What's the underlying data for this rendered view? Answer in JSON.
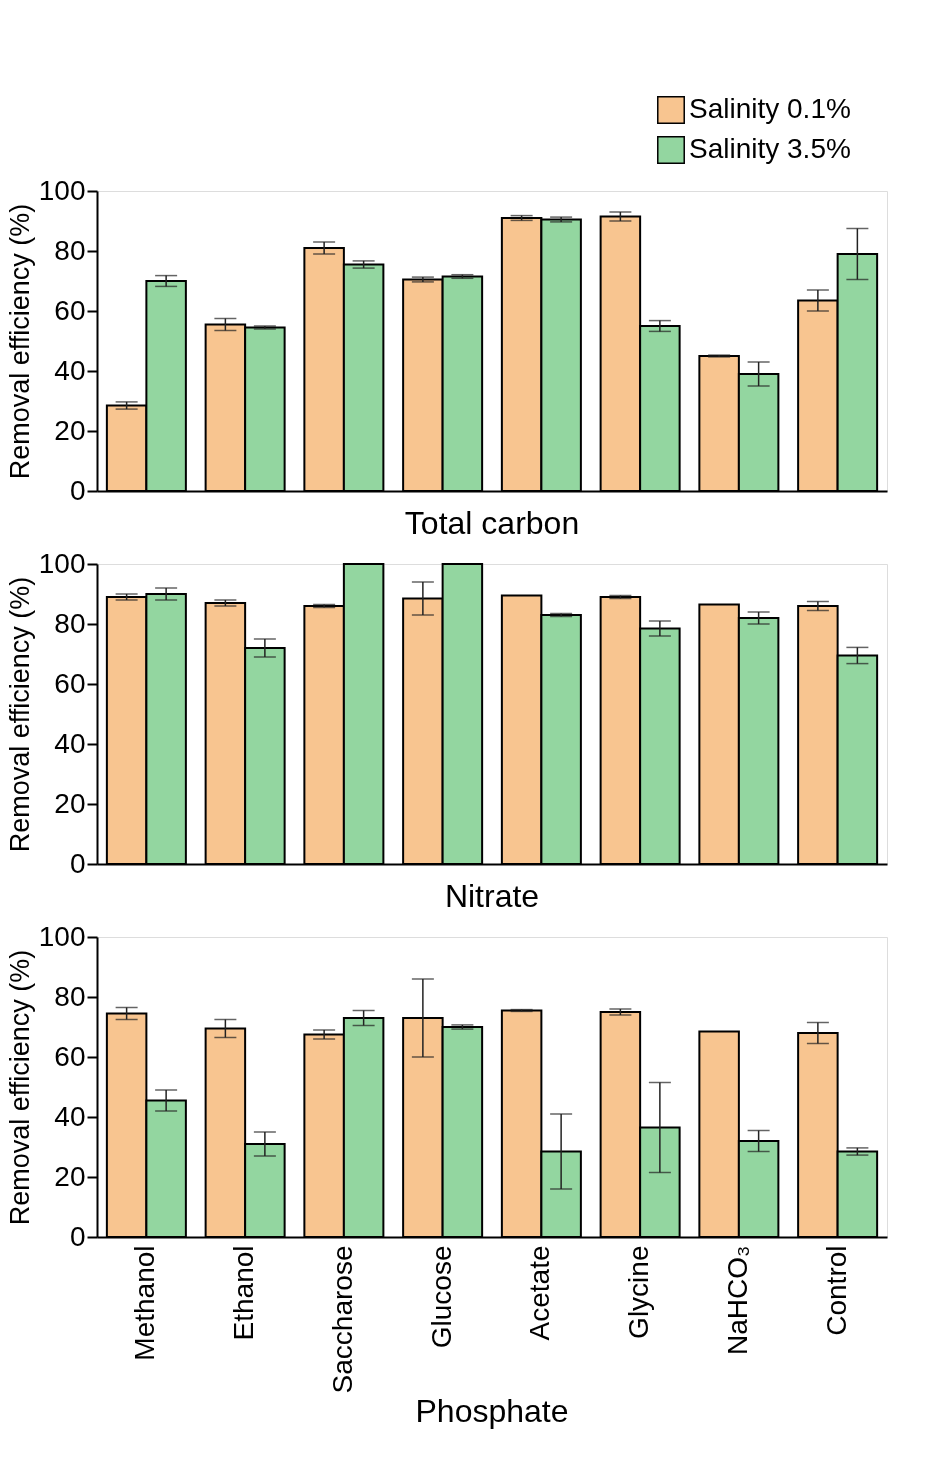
{
  "chart_data": [
    {
      "type": "bar",
      "title": "Total carbon",
      "ylabel": "Removal efficiency (%)",
      "categories": [
        null,
        null,
        null,
        null,
        null,
        null,
        null,
        null
      ],
      "ylim": [
        0,
        100
      ],
      "yticks": [
        0,
        20,
        40,
        60,
        80,
        100
      ],
      "grid": false,
      "legend": "top right",
      "tick_labels": "y",
      "series": [
        {
          "name": "Salinity 0.1%",
          "color": "#f8c590",
          "values": [
            28.5,
            55.5,
            81,
            70.5,
            91,
            91.5,
            45,
            63.5
          ],
          "errors": [
            1.2,
            2,
            2,
            0.8,
            0.8,
            1.5,
            0.3,
            3.5
          ]
        },
        {
          "name": "Salinity 3.5%",
          "color": "#93d6a0",
          "values": [
            70,
            54.5,
            75.5,
            71.5,
            90.5,
            55,
            39,
            79
          ],
          "errors": [
            1.8,
            0.5,
            1.2,
            0.6,
            0.8,
            1.8,
            4,
            8.5
          ]
        }
      ]
    },
    {
      "type": "bar",
      "title": "Nitrate",
      "ylabel": "Removal efficiency (%)",
      "categories": [
        null,
        null,
        null,
        null,
        null,
        null,
        null,
        null
      ],
      "ylim": [
        0,
        100
      ],
      "yticks": [
        0,
        20,
        40,
        60,
        80,
        100
      ],
      "grid": false,
      "tick_labels": "y",
      "series": [
        {
          "name": "Salinity 0.1%",
          "color": "#f8c590",
          "values": [
            89,
            87,
            86,
            88.5,
            89.5,
            89,
            86.5,
            86
          ],
          "errors": [
            1,
            1,
            0.5,
            5.5,
            null,
            0.5,
            null,
            1.5
          ]
        },
        {
          "name": "Salinity 3.5%",
          "color": "#93d6a0",
          "values": [
            90,
            72,
            100,
            100,
            83,
            78.5,
            82,
            69.5
          ],
          "errors": [
            2,
            3,
            null,
            null,
            0.5,
            2.5,
            2,
            2.7
          ]
        }
      ]
    },
    {
      "type": "bar",
      "title": "Phosphate",
      "ylabel": "Removal efficiency (%)",
      "categories": [
        "Methanol",
        "Ethanol",
        "Saccharose",
        "Glucose",
        "Acetate",
        "Glycine",
        "NaHCO₃",
        "Control"
      ],
      "ylim": [
        0,
        100
      ],
      "yticks": [
        0,
        20,
        40,
        60,
        80,
        100
      ],
      "grid": false,
      "series": [
        {
          "name": "Salinity 0.1%",
          "color": "#f8c590",
          "values": [
            74.5,
            69.5,
            67.5,
            73,
            75.5,
            75,
            68.5,
            68
          ],
          "errors": [
            2,
            3,
            1.5,
            13,
            0.3,
            1,
            null,
            3.5
          ]
        },
        {
          "name": "Salinity 3.5%",
          "color": "#93d6a0",
          "values": [
            45.5,
            31,
            73,
            70,
            28.5,
            36.5,
            32,
            28.5
          ],
          "errors": [
            3.5,
            4,
            2.5,
            0.7,
            12.5,
            15,
            3.5,
            1.2
          ]
        }
      ]
    }
  ]
}
